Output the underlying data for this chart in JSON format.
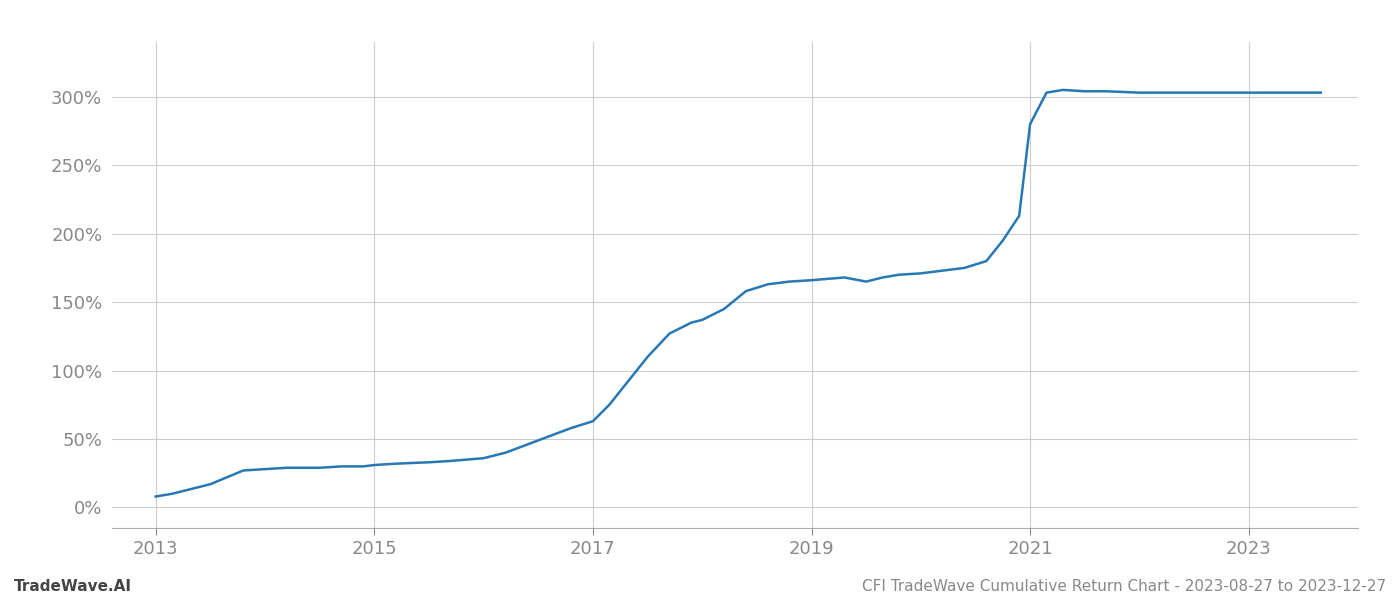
{
  "title": "CFI TradeWave Cumulative Return Chart - 2023-08-27 to 2023-12-27",
  "watermark": "TradeWave.AI",
  "line_color": "#2878b5",
  "background_color": "#ffffff",
  "grid_color": "#cccccc",
  "x_values": [
    2013.0,
    2013.15,
    2013.3,
    2013.5,
    2013.65,
    2013.8,
    2014.0,
    2014.2,
    2014.5,
    2014.7,
    2014.9,
    2015.0,
    2015.2,
    2015.5,
    2015.7,
    2015.85,
    2016.0,
    2016.2,
    2016.4,
    2016.6,
    2016.8,
    2017.0,
    2017.15,
    2017.3,
    2017.5,
    2017.7,
    2017.9,
    2018.0,
    2018.2,
    2018.4,
    2018.6,
    2018.8,
    2019.0,
    2019.15,
    2019.3,
    2019.5,
    2019.65,
    2019.8,
    2020.0,
    2020.2,
    2020.4,
    2020.6,
    2020.75,
    2020.9,
    2021.0,
    2021.15,
    2021.3,
    2021.5,
    2021.7,
    2022.0,
    2022.3,
    2022.6,
    2022.9,
    2023.0,
    2023.3,
    2023.66
  ],
  "y_values": [
    8,
    10,
    13,
    17,
    22,
    27,
    28,
    29,
    29,
    30,
    30,
    31,
    32,
    33,
    34,
    35,
    36,
    40,
    46,
    52,
    58,
    63,
    75,
    90,
    110,
    127,
    135,
    137,
    145,
    158,
    163,
    165,
    166,
    167,
    168,
    165,
    168,
    170,
    171,
    173,
    175,
    180,
    195,
    213,
    280,
    303,
    305,
    304,
    304,
    303,
    303,
    303,
    303,
    303,
    303,
    303
  ],
  "xlim": [
    2012.6,
    2024.0
  ],
  "ylim": [
    -15,
    340
  ],
  "yticks": [
    0,
    50,
    100,
    150,
    200,
    250,
    300
  ],
  "xticks": [
    2013,
    2015,
    2017,
    2019,
    2021,
    2023
  ],
  "tick_label_color": "#888888",
  "tick_fontsize": 13,
  "footer_fontsize": 11,
  "line_width": 1.8
}
